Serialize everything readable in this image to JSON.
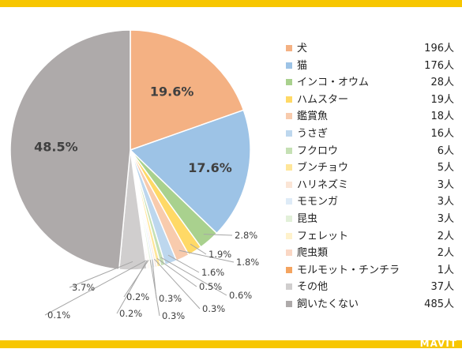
{
  "brand": "MAVIT",
  "chart_data": {
    "type": "pie",
    "categories": [
      "犬",
      "猫",
      "インコ・オウム",
      "ハムスター",
      "鑑賞魚",
      "うさぎ",
      "フクロウ",
      "ブンチョウ",
      "ハリネズミ",
      "モモンガ",
      "昆虫",
      "フェレット",
      "爬虫類",
      "モルモット・チンチラ",
      "その他",
      "飼いたくない"
    ],
    "values": [
      19.6,
      17.6,
      2.8,
      1.9,
      1.8,
      1.6,
      0.6,
      0.5,
      0.3,
      0.3,
      0.3,
      0.2,
      0.2,
      0.1,
      3.7,
      48.5
    ],
    "data_labels": [
      "19.6%",
      "17.6%",
      "2.8%",
      "1.9%",
      "1.8%",
      "1.6%",
      "0.6%",
      "0.5%",
      "0.3%",
      "0.3%",
      "0.3%",
      "0.2%",
      "0.2%",
      "0.1%",
      "3.7%",
      "48.5%"
    ],
    "counts": [
      "196人",
      "176人",
      "28人",
      "19人",
      "18人",
      "16人",
      "6人",
      "5人",
      "3人",
      "3人",
      "3人",
      "2人",
      "2人",
      "1人",
      "37人",
      "485人"
    ],
    "colors": [
      "#f4b183",
      "#9dc3e6",
      "#a9d18e",
      "#ffd966",
      "#f8cbad",
      "#bdd7ee",
      "#c5e0b4",
      "#ffe699",
      "#fbe5d6",
      "#deebf7",
      "#e2f0d9",
      "#fff2cc",
      "#fad7c4",
      "#f4a460",
      "#d0cece",
      "#aeaaaa"
    ],
    "legend_position": "right"
  }
}
